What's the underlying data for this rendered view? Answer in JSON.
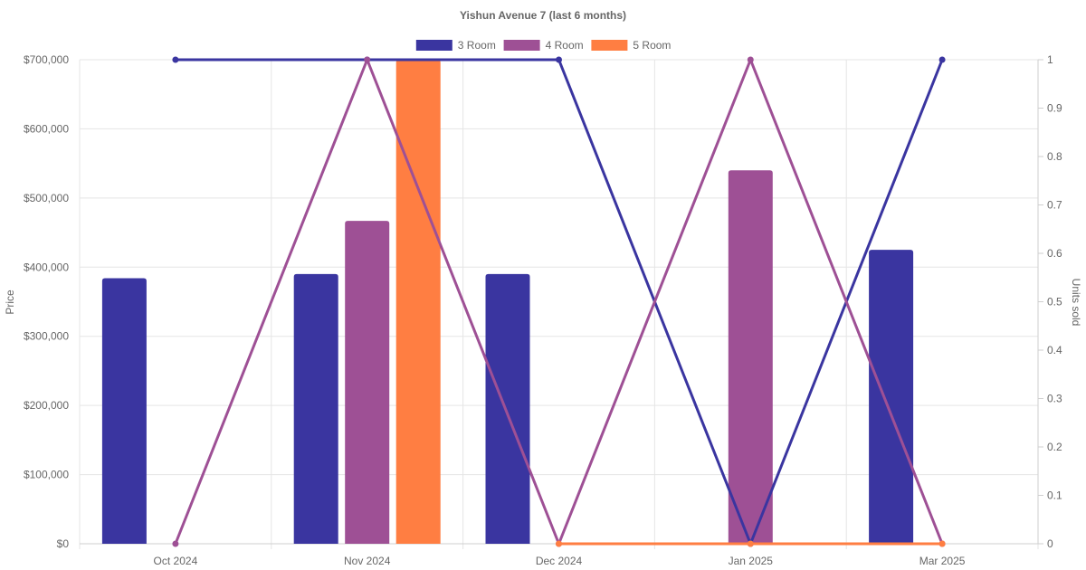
{
  "chart_data": {
    "type": "bar",
    "title": "Yishun Avenue 7 (last 6 months)",
    "categories": [
      "Oct 2024",
      "Nov 2024",
      "Dec 2024",
      "Jan 2025",
      "Mar 2025"
    ],
    "ylabel": "Price",
    "y2label": "Units sold",
    "ylim": [
      0,
      700000
    ],
    "y2lim": [
      0,
      1
    ],
    "y_ticks": [
      "$0",
      "$100,000",
      "$200,000",
      "$300,000",
      "$400,000",
      "$500,000",
      "$600,000",
      "$700,000"
    ],
    "y2_ticks": [
      "0",
      "0.1",
      "0.2",
      "0.3",
      "0.4",
      "0.5",
      "0.6",
      "0.7",
      "0.8",
      "0.9",
      "1"
    ],
    "legend_position": "top",
    "grid": true,
    "series": [
      {
        "name": "3 Room",
        "color": "#3a35a0",
        "price": [
          384000,
          390000,
          390000,
          null,
          425000
        ],
        "units_sold": [
          1,
          1,
          1,
          0,
          1
        ]
      },
      {
        "name": "4 Room",
        "color": "#9e5095",
        "price": [
          null,
          467000,
          null,
          540000,
          null
        ],
        "units_sold": [
          0,
          1,
          0,
          1,
          0
        ]
      },
      {
        "name": "5 Room",
        "color": "#ff7e42",
        "price": [
          null,
          700000,
          null,
          null,
          null
        ],
        "units_sold": [
          null,
          null,
          0,
          0,
          0
        ]
      }
    ]
  }
}
